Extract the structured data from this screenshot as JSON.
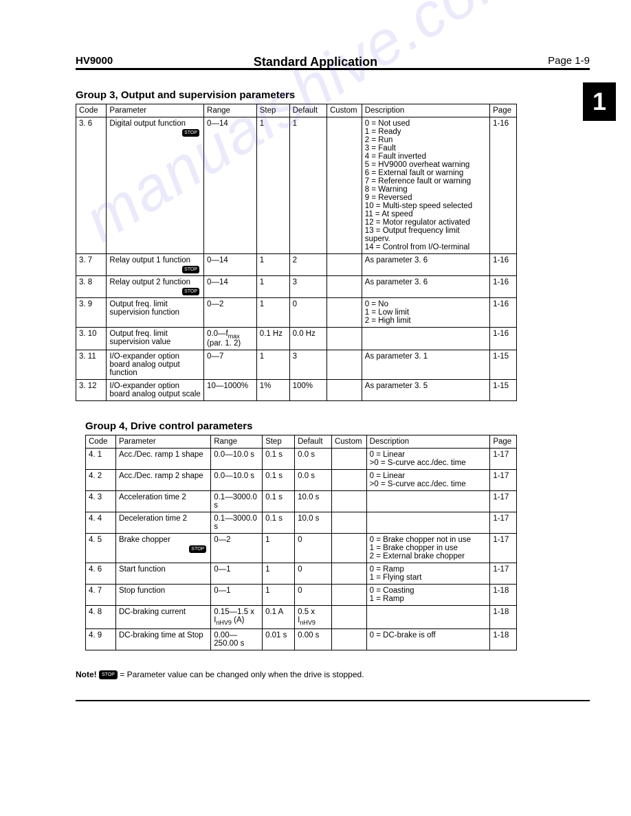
{
  "header": {
    "left": "HV9000",
    "center": "Standard Application",
    "right": "Page 1-9"
  },
  "chapter": "1",
  "watermark": "manualshive.com",
  "group3": {
    "title": "Group 3, Output and supervision parameters",
    "columns": [
      "Code",
      "Parameter",
      "Range",
      "Step",
      "Default",
      "Custom",
      "Description",
      "Page"
    ],
    "rows": [
      {
        "code": "3. 6",
        "param": "Digital output function",
        "stop": true,
        "range": "0—14",
        "step": "1",
        "default": "1",
        "custom": "",
        "desc": "0 = Not used\n1 = Ready\n2 = Run\n3 = Fault\n4 = Fault inverted\n5 = HV9000 overheat warning\n6 = External fault or warning\n7 = Reference fault or warning\n8 = Warning\n9 = Reversed\n10 = Multi-step speed selected\n11 = At speed\n12 = Motor regulator activated\n13 = Output frequency limit superv.\n14 = Control from I/O-terminal",
        "page": "1-16"
      },
      {
        "code": "3. 7",
        "param": "Relay output 1 function",
        "stop": true,
        "range": "0—14",
        "step": "1",
        "default": "2",
        "custom": "",
        "desc": "As parameter 3. 6",
        "page": "1-16"
      },
      {
        "code": "3. 8",
        "param": "Relay output 2 function",
        "stop": true,
        "range": "0—14",
        "step": "1",
        "default": "3",
        "custom": "",
        "desc": "As parameter 3. 6",
        "page": "1-16"
      },
      {
        "code": "3. 9",
        "param": "Output freq. limit supervision function",
        "stop": false,
        "range": "0—2",
        "step": "1",
        "default": "0",
        "custom": "",
        "desc": "0 = No\n1 = Low limit\n2 = High limit",
        "page": "1-16"
      },
      {
        "code": "3. 10",
        "param": "Output freq. limit supervision value",
        "stop": false,
        "range": "0.0—f<sub>max</sub> (par. 1. 2)",
        "step": "0.1 Hz",
        "default": "0.0 Hz",
        "custom": "",
        "desc": "",
        "page": "1-16"
      },
      {
        "code": "3. 11",
        "param": "I/O-expander option board analog output function",
        "stop": false,
        "range": "0—7",
        "step": "1",
        "default": "3",
        "custom": "",
        "desc": "As parameter 3. 1",
        "page": "1-15"
      },
      {
        "code": "3. 12",
        "param": "I/O-expander option board analog output scale",
        "stop": false,
        "range": "10—1000%",
        "step": "1%",
        "default": "100%",
        "custom": "",
        "desc": "As parameter 3. 5",
        "page": "1-15"
      }
    ]
  },
  "group4": {
    "title": "Group 4, Drive control parameters",
    "columns": [
      "Code",
      "Parameter",
      "Range",
      "Step",
      "Default",
      "Custom",
      "Description",
      "Page"
    ],
    "rows": [
      {
        "code": "4. 1",
        "param": "Acc./Dec. ramp 1 shape",
        "stop": false,
        "range": "0.0—10.0 s",
        "step": "0.1 s",
        "default": "0.0 s",
        "custom": "",
        "desc": "0 = Linear\n>0 = S-curve acc./dec. time",
        "page": "1-17"
      },
      {
        "code": "4. 2",
        "param": "Acc./Dec. ramp 2 shape",
        "stop": false,
        "range": "0.0—10.0 s",
        "step": "0.1 s",
        "default": "0.0 s",
        "custom": "",
        "desc": "0 = Linear\n>0 = S-curve acc./dec. time",
        "page": "1-17"
      },
      {
        "code": "4. 3",
        "param": "Acceleration time 2",
        "stop": false,
        "range": "0.1—3000.0 s",
        "step": "0.1 s",
        "default": "10.0 s",
        "custom": "",
        "desc": "",
        "page": "1-17"
      },
      {
        "code": "4. 4",
        "param": "Deceleration time 2",
        "stop": false,
        "range": "0.1—3000.0 s",
        "step": "0.1 s",
        "default": "10.0 s",
        "custom": "",
        "desc": "",
        "page": "1-17"
      },
      {
        "code": "4. 5",
        "param": "Brake chopper",
        "stop": true,
        "range": "0—2",
        "step": "1",
        "default": "0",
        "custom": "",
        "desc": "0 = Brake chopper not in use\n1 = Brake chopper in use\n2 = External brake chopper",
        "page": "1-17"
      },
      {
        "code": "4. 6",
        "param": "Start function",
        "stop": false,
        "range": "0—1",
        "step": "1",
        "default": "0",
        "custom": "",
        "desc": "0 = Ramp\n1 = Flying start",
        "page": "1-17"
      },
      {
        "code": "4. 7",
        "param": "Stop function",
        "stop": false,
        "range": "0—1",
        "step": "1",
        "default": "0",
        "custom": "",
        "desc": "0 = Coasting\n1 = Ramp",
        "page": "1-18"
      },
      {
        "code": "4. 8",
        "param": "DC-braking current",
        "stop": false,
        "range": "0.15—1.5 x I<sub>nHV9</sub> (A)",
        "step": "0.1 A",
        "default": "0.5 x I<sub>nHV9</sub>",
        "custom": "",
        "desc": "",
        "page": "1-18"
      },
      {
        "code": "4. 9",
        "param": "DC-braking time at Stop",
        "stop": false,
        "range": "0.00—250.00 s",
        "step": "0.01 s",
        "default": "0.00 s",
        "custom": "",
        "desc": "0 = DC-brake is off",
        "page": "1-18"
      }
    ]
  },
  "note": {
    "label": "Note!",
    "badge": "STOP",
    "text": "= Parameter value can be changed only when the drive is stopped."
  },
  "stop_label": "STOP"
}
